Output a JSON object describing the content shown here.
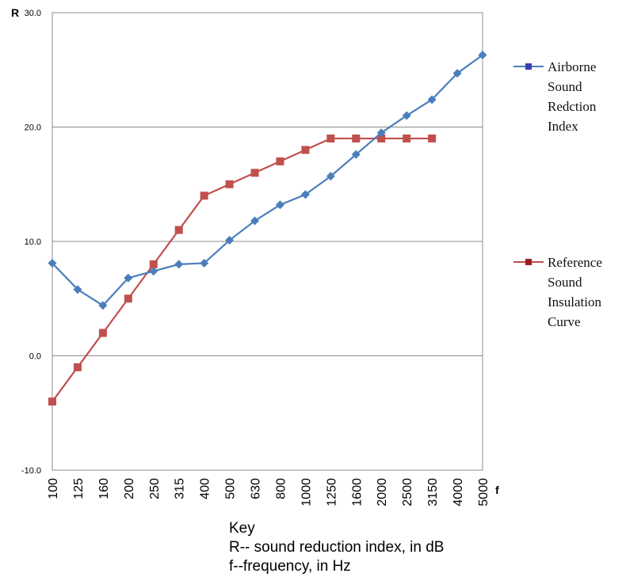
{
  "chart_data": {
    "type": "line",
    "y_axis_letter": "R",
    "x_axis_letter": "f",
    "categories": [
      "100",
      "125",
      "160",
      "200",
      "250",
      "315",
      "400",
      "500",
      "630",
      "800",
      "1000",
      "1250",
      "1600",
      "2000",
      "2500",
      "3150",
      "4000",
      "5000"
    ],
    "ylim": [
      -10,
      30
    ],
    "y_ticks": [
      -10,
      0,
      10,
      20,
      30
    ],
    "y_tick_labels": [
      "-10.0",
      "0.0",
      "10.0",
      "20.0",
      "30.0"
    ],
    "grid": "horizontal",
    "legend_position": "right",
    "series": [
      {
        "name_lines": [
          "Airborne",
          "Sound",
          "Redction",
          "Index"
        ],
        "color": "#4a7ebb",
        "marker": "diamond",
        "values": [
          8.1,
          5.8,
          4.4,
          6.8,
          7.4,
          8.0,
          8.1,
          10.1,
          11.8,
          13.2,
          14.1,
          15.7,
          17.6,
          19.5,
          21.0,
          22.4,
          24.7,
          26.3
        ]
      },
      {
        "name_lines": [
          "Reference",
          "Sound",
          "Insulation",
          "Curve"
        ],
        "color": "#c0504d",
        "marker": "square",
        "values": [
          -4,
          -1,
          2,
          5,
          8,
          11,
          14,
          15,
          16,
          17,
          18,
          19,
          19,
          19,
          19,
          19,
          null,
          null
        ]
      }
    ]
  },
  "key": {
    "title": "Key",
    "line1": "R-- sound reduction index, in dB",
    "line2": "f--frequency, in Hz"
  }
}
